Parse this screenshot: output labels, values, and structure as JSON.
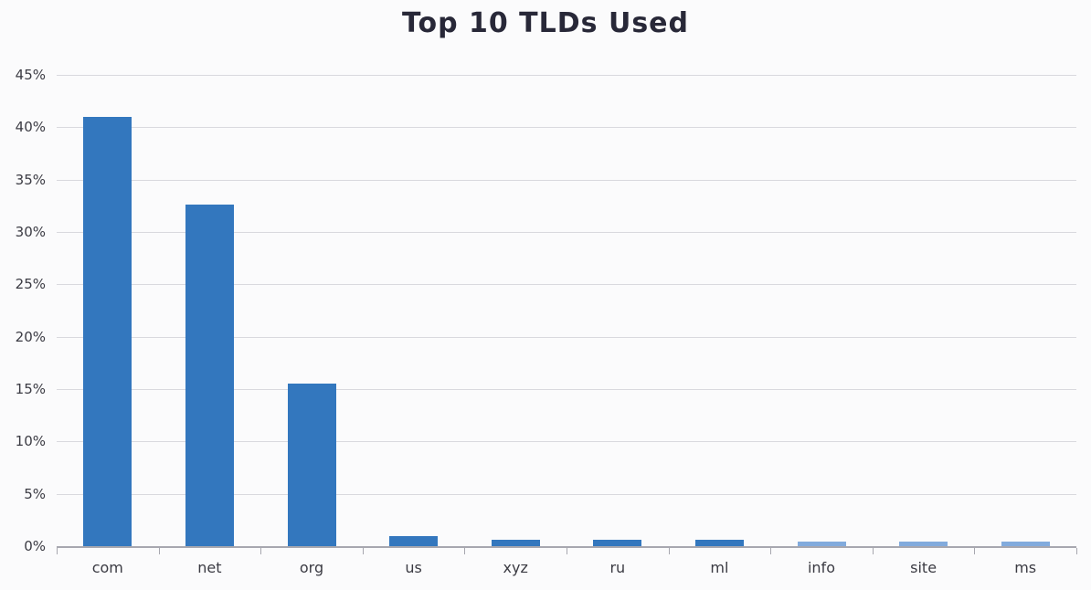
{
  "chart_data": {
    "type": "bar",
    "title": "Top 10 TLDs Used",
    "categories": [
      "com",
      "net",
      "org",
      "us",
      "xyz",
      "ru",
      "ml",
      "info",
      "site",
      "ms"
    ],
    "values": [
      41,
      32.6,
      15.5,
      1.0,
      0.6,
      0.6,
      0.6,
      0.4,
      0.4,
      0.4
    ],
    "unit": "%",
    "xlabel": "",
    "ylabel": "",
    "ylim": [
      0,
      45
    ],
    "ytick_step": 5,
    "y_tick_labels": [
      "45%",
      "40%",
      "35%",
      "30%",
      "25%",
      "20%",
      "15%",
      "10%",
      "5%",
      "0%"
    ],
    "grid": true,
    "legend_position": "none",
    "colors": {
      "bar": "#3377be",
      "bar_light": "#82abdd",
      "light_bar_categories": [
        "info",
        "site",
        "ms"
      ],
      "gridline": "#d9d9de",
      "axis": "#a7a7af",
      "tick_label": "#3b3b43",
      "title": "#282838",
      "background": "#fbfbfc"
    }
  }
}
